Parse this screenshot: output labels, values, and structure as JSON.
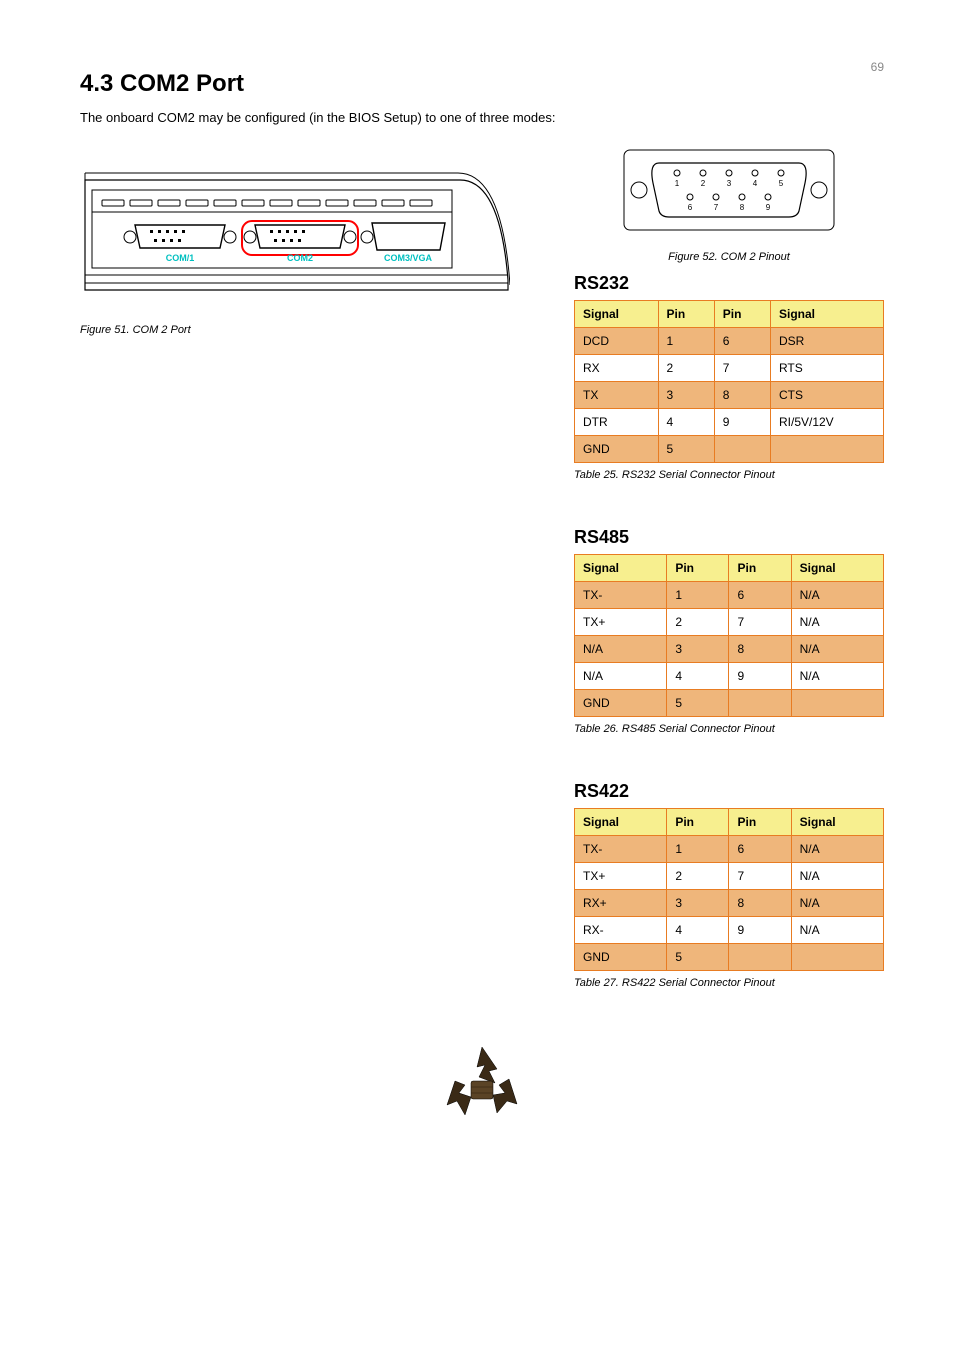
{
  "header": {
    "page_num": "69"
  },
  "page_title": "4.3 COM2 Port",
  "intro_text": "The onboard COM2 may be configured (in the BIOS Setup) to one of three modes:",
  "deviceLabels": {
    "com1": "COM/1",
    "com2": "COM2",
    "com3vga": "COM3/VGA"
  },
  "figure_left": {
    "caption": "Figure 51. COM 2 Port"
  },
  "figure_right": {
    "caption": "Figure 52. COM 2 Pinout",
    "pins_top": [
      {
        "n": "1"
      },
      {
        "n": "2"
      },
      {
        "n": "3"
      },
      {
        "n": "4"
      },
      {
        "n": "5"
      }
    ],
    "pins_bottom": [
      {
        "n": "6"
      },
      {
        "n": "7"
      },
      {
        "n": "8"
      },
      {
        "n": "9"
      }
    ]
  },
  "tables": [
    {
      "title": "RS232",
      "headers": [
        "Signal",
        "Pin",
        "Pin",
        "Signal"
      ],
      "caption": "Table 25. RS232 Serial Connector Pinout",
      "rows": [
        [
          "DCD",
          "1",
          "6",
          "DSR"
        ],
        [
          "RX",
          "2",
          "7",
          "RTS"
        ],
        [
          "TX",
          "3",
          "8",
          "CTS"
        ],
        [
          "DTR",
          "4",
          "9",
          "RI/5V/12V"
        ],
        [
          "GND",
          "5",
          "",
          ""
        ]
      ]
    },
    {
      "title": "RS485",
      "headers": [
        "Signal",
        "Pin",
        "Pin",
        "Signal"
      ],
      "caption": "Table 26. RS485 Serial Connector Pinout",
      "rows": [
        [
          "TX-",
          "1",
          "6",
          "N/A"
        ],
        [
          "TX+",
          "2",
          "7",
          "N/A"
        ],
        [
          "N/A",
          "3",
          "8",
          "N/A"
        ],
        [
          "N/A",
          "4",
          "9",
          "N/A"
        ],
        [
          "GND",
          "5",
          "",
          ""
        ]
      ]
    },
    {
      "title": "RS422",
      "headers": [
        "Signal",
        "Pin",
        "Pin",
        "Signal"
      ],
      "caption": "Table 27. RS422 Serial Connector Pinout",
      "rows": [
        [
          "TX-",
          "1",
          "6",
          "N/A"
        ],
        [
          "TX+",
          "2",
          "7",
          "N/A"
        ],
        [
          "RX+",
          "3",
          "8",
          "N/A"
        ],
        [
          "RX-",
          "4",
          "9",
          "N/A"
        ],
        [
          "GND",
          "5",
          "",
          ""
        ]
      ]
    }
  ],
  "colors": {
    "header_bg": "#f7ef8f",
    "row_odd": "#efb67b",
    "row_even": "#ffffff",
    "border": "#e87c22",
    "port_label": "#00c0c0",
    "highlight": "#ff0000"
  }
}
